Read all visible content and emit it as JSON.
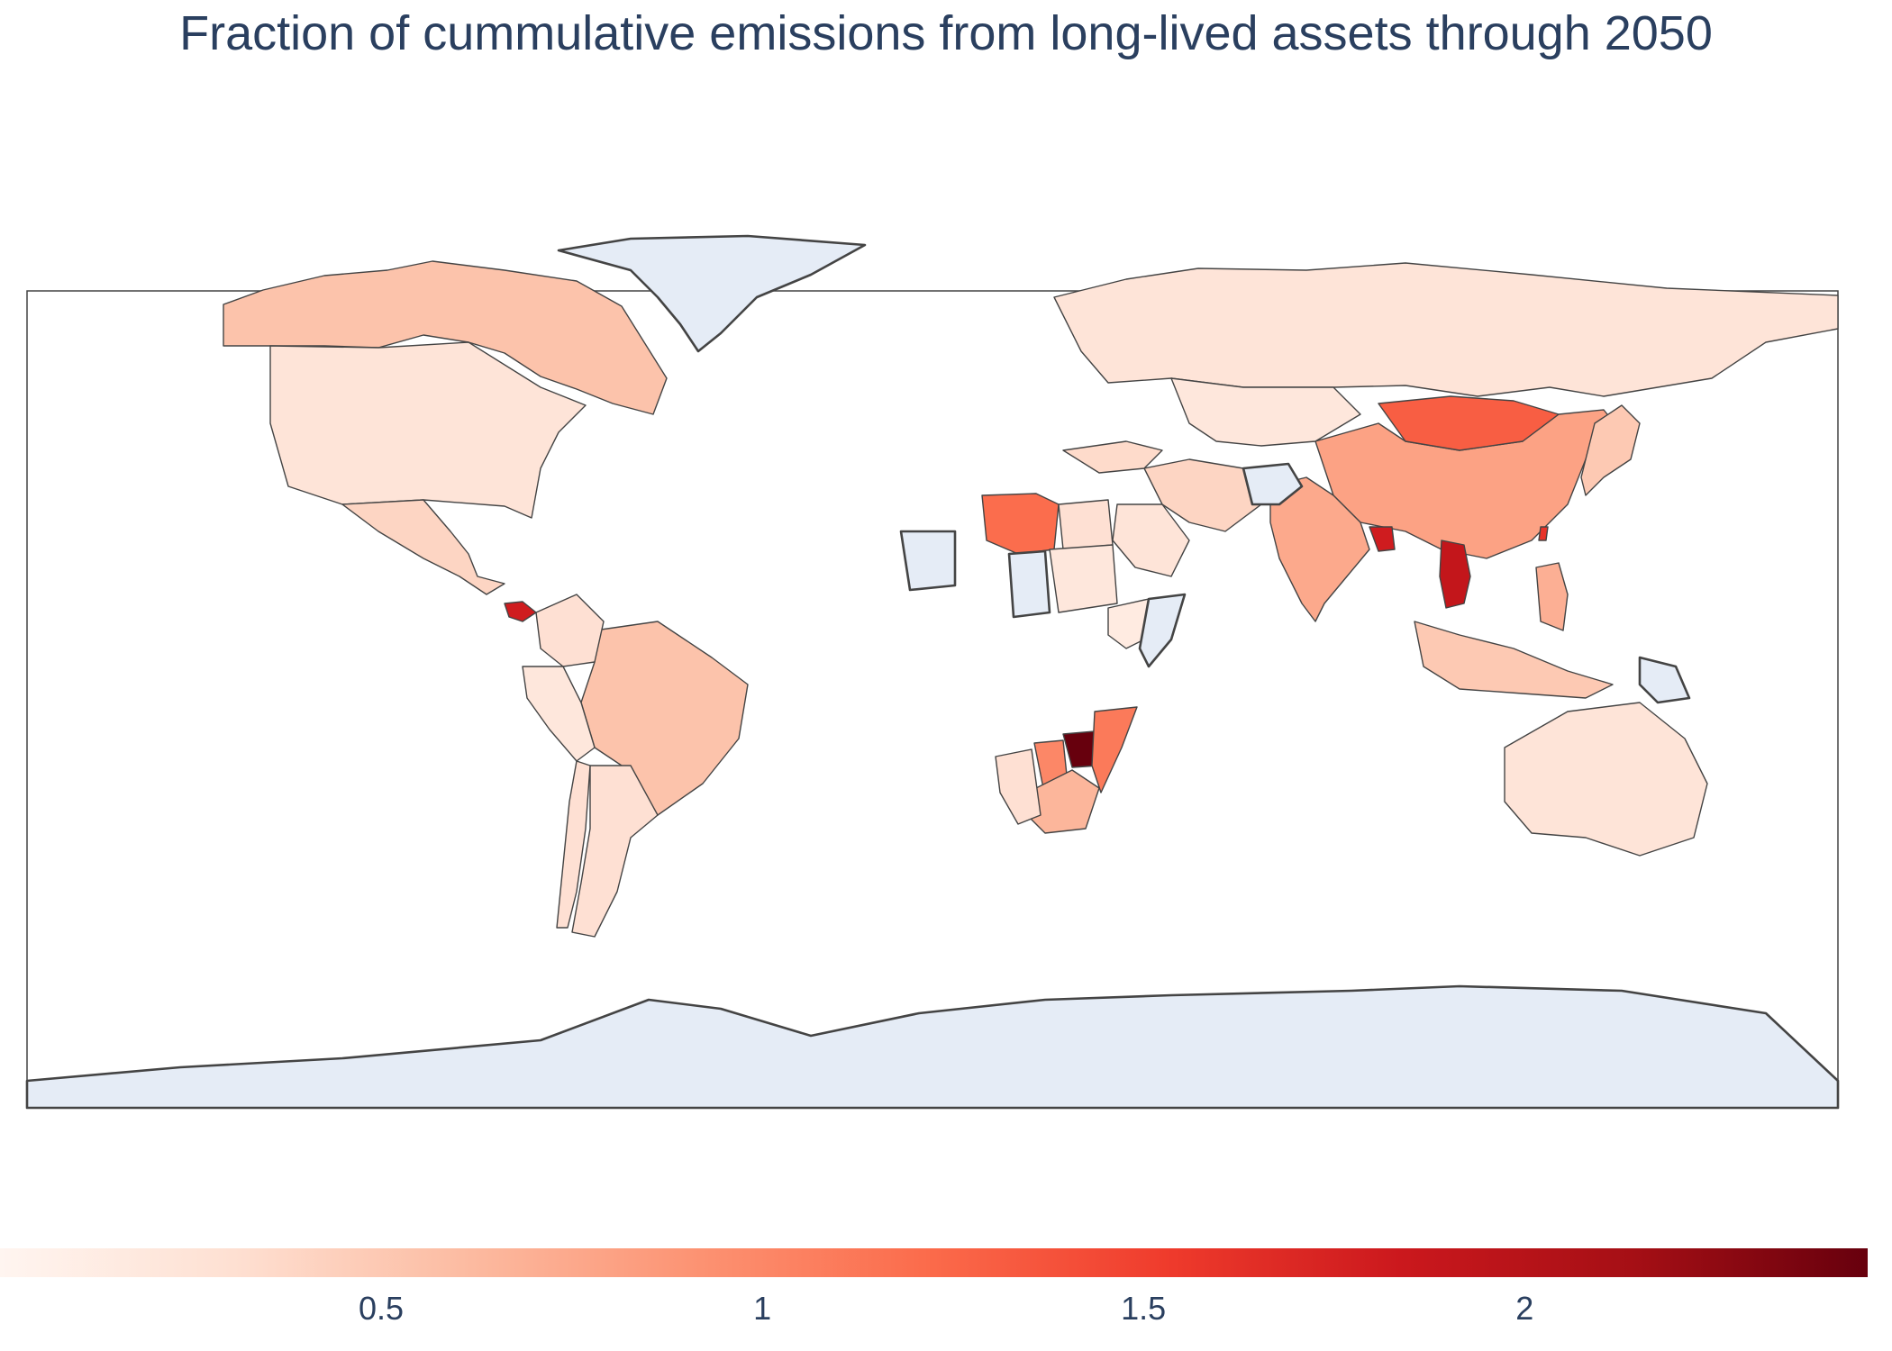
{
  "title": "Fraction of cummulative emissions from long-lived assets through 2050",
  "colorbar": {
    "colorscale": "Reds",
    "colors": [
      "#fff5f0",
      "#fee0d2",
      "#fcbba1",
      "#fc9272",
      "#fb6a4a",
      "#ef3b2c",
      "#cb181d",
      "#a50f15",
      "#67000d"
    ],
    "range": [
      0.0,
      2.45
    ],
    "ticks": [
      {
        "value": 0.5,
        "label": "0.5"
      },
      {
        "value": 1.0,
        "label": "1"
      },
      {
        "value": 1.5,
        "label": "1.5"
      },
      {
        "value": 2.0,
        "label": "2"
      }
    ]
  },
  "chart_data": {
    "type": "choropleth",
    "projection": "equirectangular",
    "colorscale": "Reds",
    "missing_data_color": "#e5ecf6",
    "countries": [
      {
        "name": "Canada",
        "value": 0.55
      },
      {
        "name": "United States",
        "value": 0.25
      },
      {
        "name": "Mexico",
        "value": 0.4
      },
      {
        "name": "Panama",
        "value": 1.8
      },
      {
        "name": "Brazil",
        "value": 0.55
      },
      {
        "name": "Argentina",
        "value": 0.3
      },
      {
        "name": "Colombia",
        "value": 0.3
      },
      {
        "name": "Peru",
        "value": 0.2
      },
      {
        "name": "Chile",
        "value": 0.3
      },
      {
        "name": "Russia",
        "value": 0.25
      },
      {
        "name": "China",
        "value": 0.8
      },
      {
        "name": "Mongolia",
        "value": 1.3
      },
      {
        "name": "India",
        "value": 0.75
      },
      {
        "name": "Bangladesh",
        "value": 1.8
      },
      {
        "name": "Vietnam",
        "value": 1.9
      },
      {
        "name": "Taiwan",
        "value": 1.6
      },
      {
        "name": "Japan",
        "value": 0.5
      },
      {
        "name": "Indonesia",
        "value": 0.5
      },
      {
        "name": "Philippines",
        "value": 0.7
      },
      {
        "name": "Australia",
        "value": 0.25
      },
      {
        "name": "Libya",
        "value": 1.2
      },
      {
        "name": "Egypt",
        "value": 0.3
      },
      {
        "name": "Zimbabwe",
        "value": 2.45
      },
      {
        "name": "Mozambique",
        "value": 1.1
      },
      {
        "name": "Botswana",
        "value": 1.0
      },
      {
        "name": "South Africa",
        "value": 0.65
      },
      {
        "name": "Namibia",
        "value": 0.3
      },
      {
        "name": "Ethiopia",
        "value": 0.15
      },
      {
        "name": "Sudan",
        "value": 0.2
      },
      {
        "name": "Saudi Arabia",
        "value": 0.25
      },
      {
        "name": "Iran",
        "value": 0.4
      },
      {
        "name": "Kazakhstan",
        "value": 0.2
      },
      {
        "name": "Turkey",
        "value": 0.35
      },
      {
        "name": "Greenland",
        "value": null
      },
      {
        "name": "Afghanistan",
        "value": null
      },
      {
        "name": "Chad",
        "value": null
      },
      {
        "name": "Mali",
        "value": null
      },
      {
        "name": "Somalia",
        "value": null
      },
      {
        "name": "Papua New Guinea",
        "value": null
      },
      {
        "name": "Antarctica",
        "value": null
      }
    ]
  }
}
